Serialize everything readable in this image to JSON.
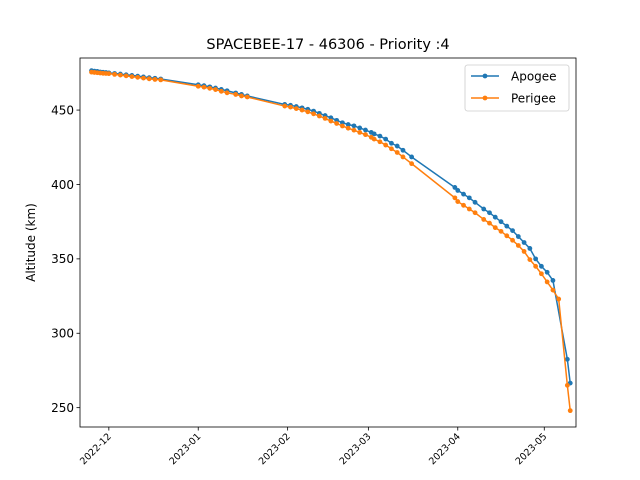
{
  "chart_data": {
    "type": "line",
    "title": "SPACEBEE-17 - 46306 - Priority :4",
    "xlabel": "",
    "ylabel": "Altitude (km)",
    "xlim": [
      "2022-11-21",
      "2023-05-12"
    ],
    "ylim": [
      237,
      485
    ],
    "x_ticks": [
      "2022-12",
      "2023-01",
      "2023-02",
      "2023-03",
      "2023-04",
      "2023-05"
    ],
    "y_ticks": [
      250,
      300,
      350,
      400,
      450
    ],
    "grid": false,
    "legend_position": "top-right",
    "series": [
      {
        "name": "Apogee",
        "color": "#1f77b4",
        "marker": "circle",
        "points": [
          [
            "2022-11-25",
            476.5
          ],
          [
            "2022-11-26",
            476.2
          ],
          [
            "2022-11-27",
            476.0
          ],
          [
            "2022-11-28",
            475.6
          ],
          [
            "2022-11-29",
            475.4
          ],
          [
            "2022-11-30",
            475.2
          ],
          [
            "2022-12-01",
            475.0
          ],
          [
            "2022-12-03",
            474.6
          ],
          [
            "2022-12-05",
            474.2
          ],
          [
            "2022-12-07",
            473.7
          ],
          [
            "2022-12-09",
            473.3
          ],
          [
            "2022-12-11",
            472.8
          ],
          [
            "2022-12-13",
            472.3
          ],
          [
            "2022-12-15",
            471.8
          ],
          [
            "2022-12-17",
            471.4
          ],
          [
            "2022-12-19",
            470.9
          ],
          [
            "2023-01-01",
            467.0
          ],
          [
            "2023-01-03",
            466.4
          ],
          [
            "2023-01-05",
            465.6
          ],
          [
            "2023-01-07",
            464.8
          ],
          [
            "2023-01-09",
            463.9
          ],
          [
            "2023-01-11",
            463.0
          ],
          [
            "2023-01-14",
            461.5
          ],
          [
            "2023-01-16",
            460.5
          ],
          [
            "2023-01-18",
            459.5
          ],
          [
            "2023-01-31",
            453.8
          ],
          [
            "2023-02-02",
            453.2
          ],
          [
            "2023-02-04",
            452.4
          ],
          [
            "2023-02-06",
            451.5
          ],
          [
            "2023-02-08",
            450.5
          ],
          [
            "2023-02-10",
            449.3
          ],
          [
            "2023-02-12",
            447.8
          ],
          [
            "2023-02-14",
            446.3
          ],
          [
            "2023-02-16",
            444.8
          ],
          [
            "2023-02-18",
            443.1
          ],
          [
            "2023-02-20",
            441.5
          ],
          [
            "2023-02-22",
            440.3
          ],
          [
            "2023-02-24",
            439.4
          ],
          [
            "2023-02-26",
            438.0
          ],
          [
            "2023-02-28",
            436.6
          ],
          [
            "2023-03-02",
            435.0
          ],
          [
            "2023-03-03",
            434.0
          ],
          [
            "2023-03-05",
            432.5
          ],
          [
            "2023-03-07",
            430.5
          ],
          [
            "2023-03-09",
            427.7
          ],
          [
            "2023-03-11",
            425.8
          ],
          [
            "2023-03-13",
            423.0
          ],
          [
            "2023-03-16",
            418.5
          ],
          [
            "2023-03-31",
            398.0
          ],
          [
            "2023-04-01",
            396.0
          ],
          [
            "2023-04-03",
            393.5
          ],
          [
            "2023-04-05",
            391.0
          ],
          [
            "2023-04-07",
            388.0
          ],
          [
            "2023-04-10",
            383.5
          ],
          [
            "2023-04-12",
            381.0
          ],
          [
            "2023-04-14",
            378.0
          ],
          [
            "2023-04-16",
            375.0
          ],
          [
            "2023-04-18",
            372.0
          ],
          [
            "2023-04-20",
            369.0
          ],
          [
            "2023-04-22",
            365.0
          ],
          [
            "2023-04-24",
            361.0
          ],
          [
            "2023-04-26",
            357.0
          ],
          [
            "2023-04-28",
            350.0
          ],
          [
            "2023-04-30",
            345.0
          ],
          [
            "2023-05-02",
            341.0
          ],
          [
            "2023-05-04",
            335.5
          ],
          [
            "2023-05-09",
            282.5
          ],
          [
            "2023-05-10",
            266.5
          ]
        ]
      },
      {
        "name": "Perigee",
        "color": "#ff7f0e",
        "marker": "circle",
        "points": [
          [
            "2022-11-25",
            475.5
          ],
          [
            "2022-11-26",
            475.3
          ],
          [
            "2022-11-27",
            475.1
          ],
          [
            "2022-11-28",
            474.9
          ],
          [
            "2022-11-29",
            474.7
          ],
          [
            "2022-11-30",
            474.6
          ],
          [
            "2022-12-01",
            474.5
          ],
          [
            "2022-12-03",
            474.0
          ],
          [
            "2022-12-05",
            473.5
          ],
          [
            "2022-12-07",
            473.0
          ],
          [
            "2022-12-09",
            472.5
          ],
          [
            "2022-12-11",
            472.0
          ],
          [
            "2022-12-13",
            471.5
          ],
          [
            "2022-12-15",
            471.0
          ],
          [
            "2022-12-17",
            470.6
          ],
          [
            "2022-12-19",
            470.3
          ],
          [
            "2023-01-01",
            466.0
          ],
          [
            "2023-01-03",
            465.4
          ],
          [
            "2023-01-05",
            464.6
          ],
          [
            "2023-01-07",
            463.8
          ],
          [
            "2023-01-09",
            462.6
          ],
          [
            "2023-01-11",
            461.6
          ],
          [
            "2023-01-14",
            460.5
          ],
          [
            "2023-01-16",
            459.5
          ],
          [
            "2023-01-18",
            458.8
          ],
          [
            "2023-01-31",
            452.7
          ],
          [
            "2023-02-02",
            452.0
          ],
          [
            "2023-02-04",
            451.0
          ],
          [
            "2023-02-06",
            450.0
          ],
          [
            "2023-02-08",
            448.8
          ],
          [
            "2023-02-10",
            447.5
          ],
          [
            "2023-02-12",
            446.0
          ],
          [
            "2023-02-14",
            444.4
          ],
          [
            "2023-02-16",
            442.6
          ],
          [
            "2023-02-18",
            441.0
          ],
          [
            "2023-02-20",
            439.3
          ],
          [
            "2023-02-22",
            437.8
          ],
          [
            "2023-02-24",
            436.5
          ],
          [
            "2023-02-26",
            435.0
          ],
          [
            "2023-02-28",
            433.5
          ],
          [
            "2023-03-02",
            431.7
          ],
          [
            "2023-03-03",
            430.5
          ],
          [
            "2023-03-05",
            428.7
          ],
          [
            "2023-03-07",
            426.5
          ],
          [
            "2023-03-09",
            424.0
          ],
          [
            "2023-03-11",
            421.5
          ],
          [
            "2023-03-13",
            418.5
          ],
          [
            "2023-03-16",
            414.0
          ],
          [
            "2023-03-31",
            391.0
          ],
          [
            "2023-04-01",
            388.5
          ],
          [
            "2023-04-03",
            386.0
          ],
          [
            "2023-04-05",
            383.5
          ],
          [
            "2023-04-07",
            381.0
          ],
          [
            "2023-04-10",
            376.5
          ],
          [
            "2023-04-12",
            374.0
          ],
          [
            "2023-04-14",
            371.0
          ],
          [
            "2023-04-16",
            368.5
          ],
          [
            "2023-04-18",
            365.5
          ],
          [
            "2023-04-20",
            362.5
          ],
          [
            "2023-04-22",
            359.0
          ],
          [
            "2023-04-24",
            355.0
          ],
          [
            "2023-04-26",
            349.5
          ],
          [
            "2023-04-28",
            345.0
          ],
          [
            "2023-04-30",
            340.0
          ],
          [
            "2023-05-02",
            334.5
          ],
          [
            "2023-05-04",
            329.0
          ],
          [
            "2023-05-06",
            323.0
          ],
          [
            "2023-05-09",
            265.0
          ],
          [
            "2023-05-10",
            248.0
          ]
        ]
      }
    ]
  }
}
